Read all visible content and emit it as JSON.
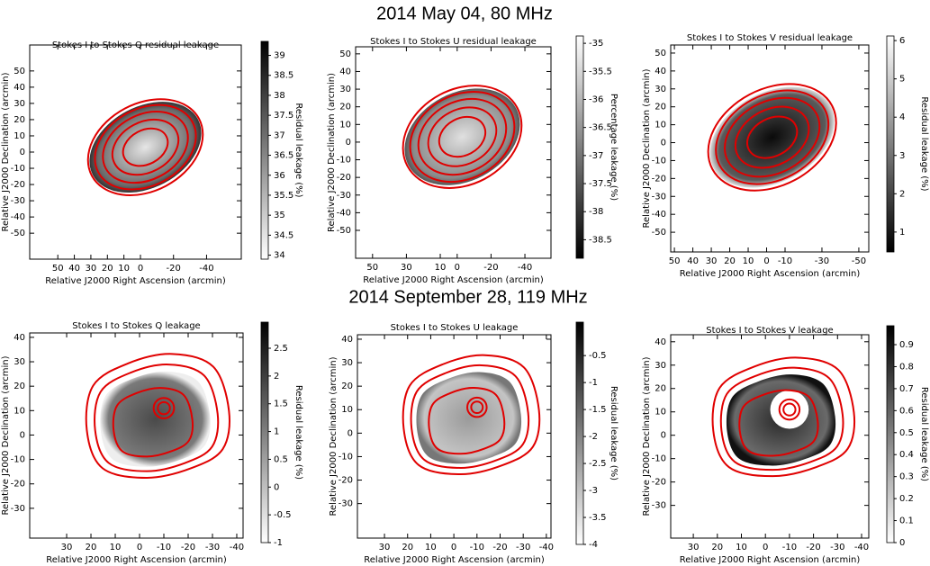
{
  "headings": [
    "2014 May 04, 80 MHz",
    "2014 September 28, 119 MHz"
  ],
  "chart_data": [
    {
      "type": "heatmap",
      "title": "Stokes I to Stokes Q residual leakage",
      "xlabel": "Relative J2000 Right Ascension (arcmin)",
      "ylabel": "Relative J2000 Declination (arcmin)",
      "xlim": [
        67,
        -61
      ],
      "xticks": [
        50,
        40,
        30,
        20,
        10,
        0,
        -20,
        -40
      ],
      "ylim": [
        -66,
        66
      ],
      "yticks": [
        -50,
        -40,
        -30,
        -20,
        -10,
        0,
        10,
        20,
        30,
        40,
        50
      ],
      "colorbar": {
        "label": "Residual leakage (%)",
        "lim": [
          33.9,
          39.35
        ],
        "ticks": [
          34,
          34.5,
          35,
          35.5,
          36,
          36.5,
          37,
          37.5,
          38,
          38.5,
          39
        ],
        "colors": [
          "#ffffff",
          "#000000"
        ]
      },
      "contour_color": "#e00000"
    },
    {
      "type": "heatmap",
      "title": "Stokes I to Stokes U residual leakage",
      "xlabel": "Relative J2000 Right Ascension (arcmin)",
      "ylabel": "Relative J2000 Declination (arcmin)",
      "xlim": [
        60,
        -55.4
      ],
      "xticks": [
        50,
        30,
        10,
        0,
        -20,
        -40
      ],
      "ylim": [
        -65.8,
        54
      ],
      "yticks": [
        -50,
        -40,
        -30,
        -20,
        -10,
        0,
        10,
        20,
        30,
        40,
        50
      ],
      "colorbar": {
        "label": "Percentage leakage (%)",
        "lim": [
          -38.83,
          -34.87
        ],
        "ticks": [
          -38.5,
          -38,
          -37.5,
          -37,
          -36.5,
          -36,
          -35.5,
          -35
        ],
        "colors": [
          "#000000",
          "#ffffff"
        ]
      },
      "contour_color": "#e00000"
    },
    {
      "type": "heatmap",
      "title": "Stokes I to Stokes V residual leakage",
      "xlabel": "Relative J2000 Right Ascension (arcmin)",
      "ylabel": "Relative J2000 Declination (arcmin)",
      "xlim": [
        52,
        -55.4
      ],
      "xticks": [
        50,
        40,
        30,
        20,
        10,
        0,
        -10,
        -30,
        -50
      ],
      "ylim": [
        -61,
        54.5
      ],
      "yticks": [
        -50,
        -40,
        -30,
        -20,
        -10,
        0,
        10,
        20,
        30,
        40,
        50
      ],
      "colorbar": {
        "label": "Residual leakage (%)",
        "lim": [
          0.48,
          6.12
        ],
        "ticks": [
          1,
          2,
          3,
          4,
          5,
          6
        ],
        "colors": [
          "#000000",
          "#ffffff"
        ]
      },
      "contour_color": "#e00000"
    },
    {
      "type": "heatmap",
      "title": "Stokes I to Stokes Q leakage",
      "xlabel": "Relative J2000 Right Ascension (arcmin)",
      "ylabel": "Relative J2000 Declination (arcmin)",
      "xlim": [
        45.2,
        -42.6
      ],
      "xticks": [
        30,
        20,
        10,
        0,
        -10,
        -20,
        -30,
        -40
      ],
      "ylim": [
        -42.2,
        41.8
      ],
      "yticks": [
        -30,
        -20,
        -10,
        0,
        10,
        20,
        30,
        40
      ],
      "colorbar": {
        "label": "Residual leakage (%)",
        "lim": [
          -1,
          2.97
        ],
        "ticks": [
          -1,
          -0.5,
          0,
          0.5,
          1,
          1.5,
          2,
          2.5
        ],
        "colors": [
          "#ffffff",
          "#000000"
        ]
      },
      "contour_color": "#e00000"
    },
    {
      "type": "heatmap",
      "title": "Stokes I to Stokes U leakage",
      "xlabel": "Relative J2000 Right Ascension (arcmin)",
      "ylabel": "Relative J2000 Declination (arcmin)",
      "xlim": [
        41.7,
        -42
      ],
      "xticks": [
        30,
        20,
        10,
        0,
        -10,
        -20,
        -30,
        -40
      ],
      "ylim": [
        -44.7,
        41.9
      ],
      "yticks": [
        -30,
        -20,
        -10,
        0,
        10,
        20,
        30,
        40
      ],
      "colorbar": {
        "label": "Residual leakage (%)",
        "lim": [
          -4,
          0.12
        ],
        "ticks": [
          -4,
          -3.5,
          -3,
          -2.5,
          -2,
          -1.5,
          -1,
          -0.5
        ],
        "colors": [
          "#ffffff",
          "#000000"
        ]
      },
      "contour_color": "#e00000"
    },
    {
      "type": "heatmap",
      "title": "Stokes I to Stokes V leakage",
      "xlabel": "Relative J2000 Right Ascension (arcmin)",
      "ylabel": "Relative J2000 Declination (arcmin)",
      "xlim": [
        39.4,
        -43
      ],
      "xticks": [
        30,
        20,
        10,
        0,
        -10,
        -20,
        -30,
        -40
      ],
      "ylim": [
        -44,
        43
      ],
      "yticks": [
        -30,
        -20,
        -10,
        0,
        10,
        20,
        30,
        40
      ],
      "colorbar": {
        "label": "Residual leakage (%)",
        "lim": [
          0,
          0.986
        ],
        "ticks": [
          0,
          0.1,
          0.2,
          0.3,
          0.4,
          0.5,
          0.6,
          0.7,
          0.8,
          0.9
        ],
        "colors": [
          "#ffffff",
          "#000000"
        ]
      },
      "contour_color": "#e00000"
    }
  ]
}
